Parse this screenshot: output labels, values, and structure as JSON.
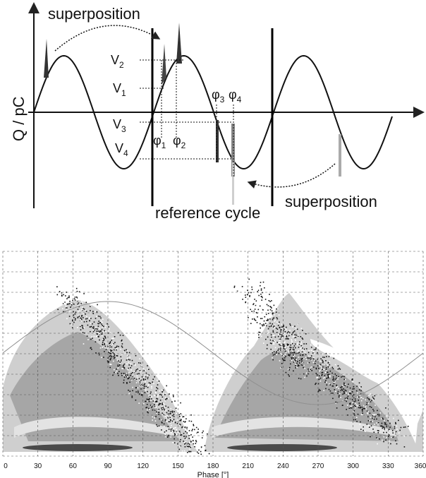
{
  "top_diagram": {
    "y_axis_label": "Q / pC",
    "superposition_top": "superposition",
    "superposition_bottom": "superposition",
    "reference_cycle": "reference cycle",
    "levels": [
      {
        "base": "V",
        "sub": "2"
      },
      {
        "base": "V",
        "sub": "1"
      },
      {
        "base": "V",
        "sub": "3"
      },
      {
        "base": "V",
        "sub": "4"
      }
    ],
    "phases": [
      {
        "base": "φ",
        "sub": "1"
      },
      {
        "base": "φ",
        "sub": "2"
      },
      {
        "base": "φ",
        "sub": "3"
      },
      {
        "base": "φ",
        "sub": "4"
      }
    ]
  },
  "chart_data": {
    "type": "heatmap",
    "title": "",
    "xlabel": "Phase [°]",
    "ylabel": "",
    "xlim": [
      0,
      360
    ],
    "x_ticks": [
      "0",
      "30",
      "60",
      "90",
      "120",
      "150",
      "180",
      "210",
      "240",
      "270",
      "300",
      "330",
      "360"
    ],
    "grid": true,
    "legend": "none",
    "reference_sine": "one full cycle across 0–360°, peak near 90°",
    "clusters": [
      {
        "phase_range": [
          0,
          160
        ],
        "peak_phase": 75
      },
      {
        "phase_range": [
          180,
          360
        ],
        "peak_phase": 242
      }
    ],
    "colors": {
      "light": "#cfcfcf",
      "medium": "#a6a6a6",
      "dark": "#4a4a4a",
      "speckle": "#111111",
      "sine": "#909090",
      "grid": "#555555"
    }
  }
}
